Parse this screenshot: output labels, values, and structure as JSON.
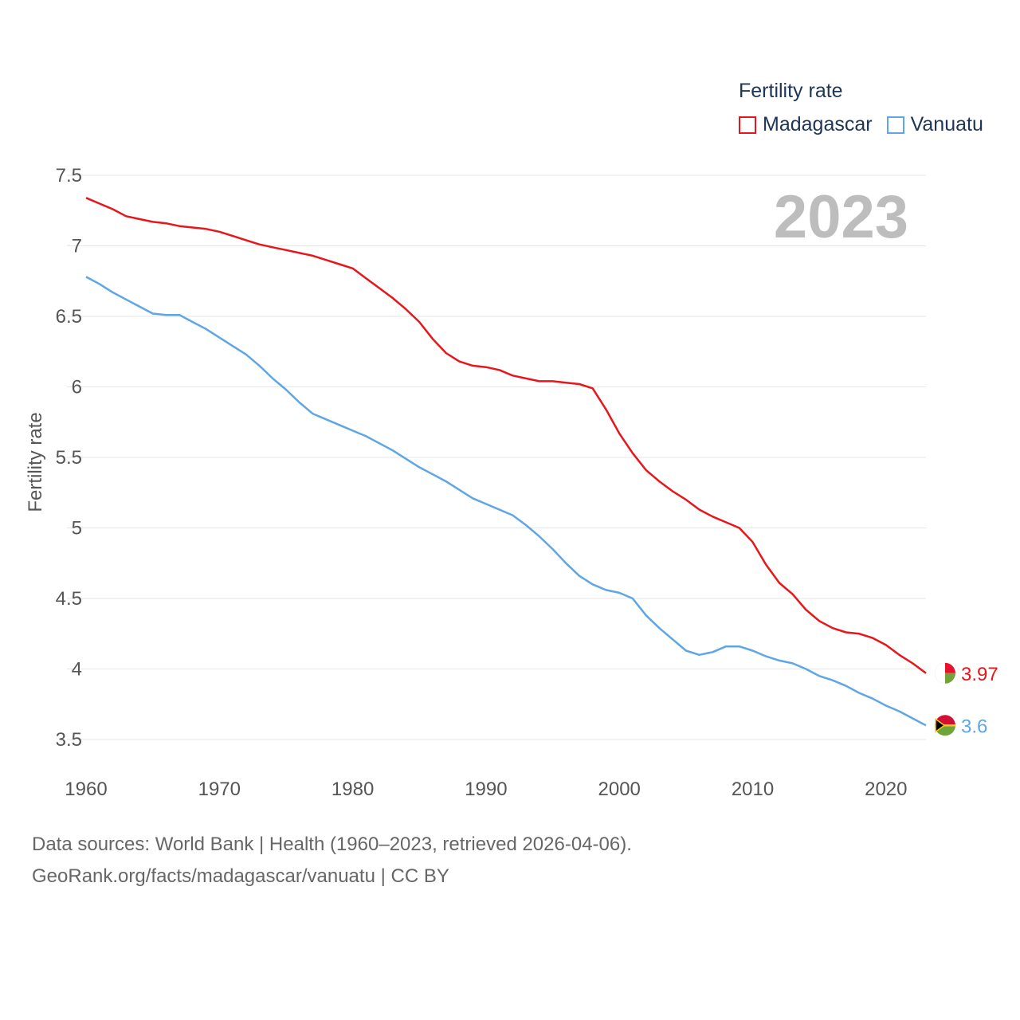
{
  "legend": {
    "title": "Fertility rate",
    "items": [
      {
        "label": "Madagascar",
        "color": "#e8161b"
      },
      {
        "label": "Vanuatu",
        "color": "#5ea6e6"
      }
    ]
  },
  "footer": {
    "line1": "Data sources: World Bank | Health (1960–2023, retrieved 2026-04-06).",
    "line2": "GeoRank.org/facts/madagascar/vanuatu | CC BY"
  },
  "chart_data": {
    "type": "line",
    "title": "Fertility rate",
    "year_label": "2023",
    "ylabel": "Fertility rate",
    "xlabel": "",
    "xlim": [
      1960,
      2023
    ],
    "ylim": [
      3.5,
      7.5
    ],
    "xticks": [
      "1960",
      "1970",
      "1980",
      "1990",
      "2000",
      "2010",
      "2020"
    ],
    "yticks": [
      "3.5",
      "4",
      "4.5",
      "5",
      "5.5",
      "6",
      "6.5",
      "7",
      "7.5"
    ],
    "x": [
      1960,
      1961,
      1962,
      1963,
      1964,
      1965,
      1966,
      1967,
      1968,
      1969,
      1970,
      1971,
      1972,
      1973,
      1974,
      1975,
      1976,
      1977,
      1978,
      1979,
      1980,
      1981,
      1982,
      1983,
      1984,
      1985,
      1986,
      1987,
      1988,
      1989,
      1990,
      1991,
      1992,
      1993,
      1994,
      1995,
      1996,
      1997,
      1998,
      1999,
      2000,
      2001,
      2002,
      2003,
      2004,
      2005,
      2006,
      2007,
      2008,
      2009,
      2010,
      2011,
      2012,
      2013,
      2014,
      2015,
      2016,
      2017,
      2018,
      2019,
      2020,
      2021,
      2022,
      2023
    ],
    "series": [
      {
        "name": "Madagascar",
        "color": "#e8161b",
        "end_label": "3.97",
        "values": [
          7.34,
          7.3,
          7.26,
          7.21,
          7.19,
          7.17,
          7.16,
          7.14,
          7.13,
          7.12,
          7.1,
          7.07,
          7.04,
          7.01,
          6.99,
          6.97,
          6.95,
          6.93,
          6.9,
          6.87,
          6.84,
          6.77,
          6.7,
          6.63,
          6.55,
          6.46,
          6.34,
          6.24,
          6.18,
          6.15,
          6.14,
          6.12,
          6.08,
          6.06,
          6.04,
          6.04,
          6.03,
          6.02,
          5.99,
          5.84,
          5.67,
          5.53,
          5.41,
          5.33,
          5.26,
          5.2,
          5.13,
          5.08,
          5.04,
          5.0,
          4.9,
          4.74,
          4.61,
          4.53,
          4.42,
          4.34,
          4.29,
          4.26,
          4.25,
          4.22,
          4.17,
          4.1,
          4.04,
          3.97
        ]
      },
      {
        "name": "Vanuatu",
        "color": "#5ea6e6",
        "end_label": "3.6",
        "values": [
          6.78,
          6.73,
          6.67,
          6.62,
          6.57,
          6.52,
          6.51,
          6.51,
          6.46,
          6.41,
          6.35,
          6.29,
          6.23,
          6.15,
          6.06,
          5.98,
          5.89,
          5.81,
          5.77,
          5.73,
          5.69,
          5.65,
          5.6,
          5.55,
          5.49,
          5.43,
          5.38,
          5.33,
          5.27,
          5.21,
          5.17,
          5.13,
          5.09,
          5.02,
          4.94,
          4.85,
          4.75,
          4.66,
          4.6,
          4.56,
          4.54,
          4.5,
          4.38,
          4.29,
          4.21,
          4.13,
          4.1,
          4.12,
          4.16,
          4.16,
          4.13,
          4.09,
          4.06,
          4.04,
          4.0,
          3.95,
          3.92,
          3.88,
          3.83,
          3.79,
          3.74,
          3.7,
          3.65,
          3.6
        ]
      }
    ]
  }
}
